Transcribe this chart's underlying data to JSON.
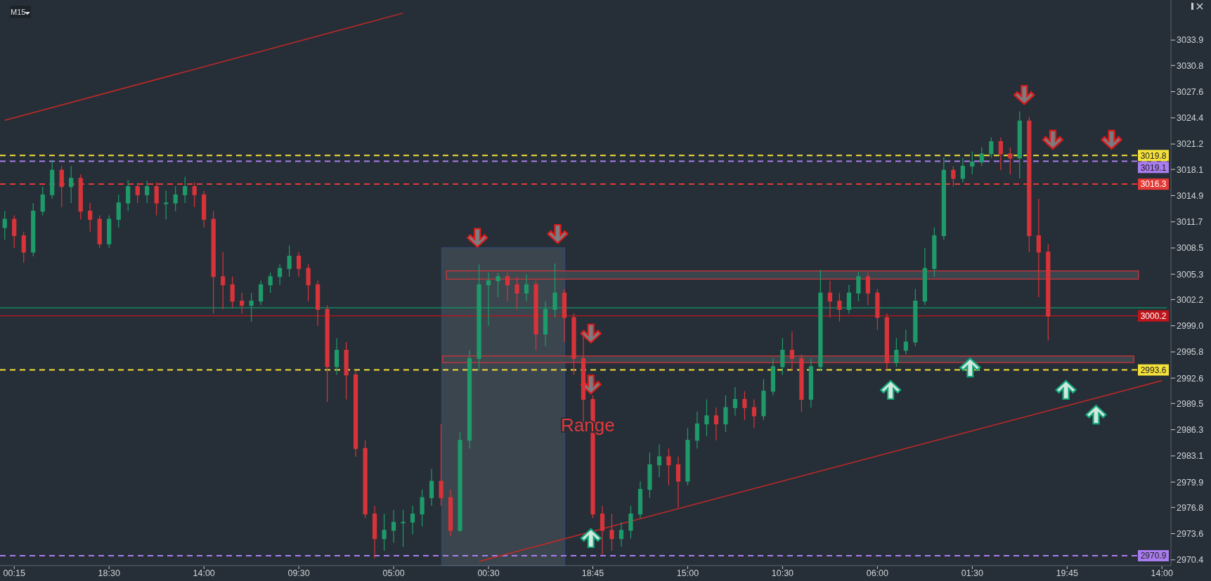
{
  "chart_data": {
    "type": "candlestick",
    "categories": [
      null,
      "00:15",
      null,
      null,
      null,
      null,
      null,
      null,
      null,
      null,
      null,
      "18:30",
      null,
      null,
      null,
      null,
      null,
      null,
      null,
      null,
      null,
      "14:00",
      null,
      null,
      null,
      null,
      null,
      null,
      null,
      null,
      null,
      "09:30",
      null,
      null,
      null,
      null,
      null,
      null,
      null,
      null,
      null,
      "05:00",
      null,
      null,
      null,
      null,
      null,
      null,
      null,
      null,
      null,
      "00:30",
      null,
      null,
      null,
      null,
      null,
      null,
      null,
      null,
      null,
      null,
      "18:45",
      null,
      null,
      null,
      null,
      null,
      null,
      null,
      null,
      null,
      "15:00",
      null,
      null,
      null,
      null,
      null,
      null,
      null,
      null,
      null,
      "10:30",
      null,
      null,
      null,
      null,
      null,
      null,
      null,
      null,
      null,
      "06:00",
      null,
      null,
      null,
      null,
      null,
      null,
      null,
      null,
      null,
      "01:30",
      null,
      null,
      null,
      null,
      null,
      null,
      null,
      null,
      null,
      "19:45",
      null,
      null,
      null,
      null,
      null,
      null,
      null,
      null,
      null,
      "14:00"
    ],
    "ohlc": [
      [
        3011,
        3013,
        3009.5,
        3012
      ],
      [
        3012,
        3012.5,
        3008.5,
        3010
      ],
      [
        3010,
        3010.5,
        3006.7,
        3008
      ],
      [
        3008,
        3014,
        3007.5,
        3013
      ],
      [
        3013,
        3016,
        3012.5,
        3015
      ],
      [
        3015,
        3019.2,
        3014.5,
        3018
      ],
      [
        3018,
        3018.5,
        3013.5,
        3016
      ],
      [
        3016,
        3018.5,
        3014,
        3017
      ],
      [
        3017,
        3017.5,
        3012,
        3013
      ],
      [
        3013,
        3014,
        3010.5,
        3012
      ],
      [
        3012,
        3012.5,
        3008.5,
        3009
      ],
      [
        3009,
        3012.5,
        3008.5,
        3012
      ],
      [
        3012,
        3015,
        3011,
        3014
      ],
      [
        3014,
        3016.8,
        3013,
        3016
      ],
      [
        3016,
        3016.5,
        3014,
        3015
      ],
      [
        3015,
        3016.7,
        3014,
        3016
      ],
      [
        3016,
        3016.5,
        3012.5,
        3014
      ],
      [
        3014,
        3015.5,
        3012,
        3014
      ],
      [
        3014,
        3016,
        3013,
        3015
      ],
      [
        3015,
        3017.2,
        3014,
        3016
      ],
      [
        3016,
        3016.5,
        3013.5,
        3015
      ],
      [
        3015,
        3015.5,
        3011,
        3012
      ],
      [
        3012,
        3013,
        3000.5,
        3005
      ],
      [
        3005,
        3008,
        3001,
        3004
      ],
      [
        3004,
        3005,
        3001.2,
        3002
      ],
      [
        3002,
        3003,
        3000.5,
        3001.5
      ],
      [
        3001.5,
        3003,
        2999.5,
        3002
      ],
      [
        3002,
        3004.5,
        3001.5,
        3004
      ],
      [
        3004,
        3005.5,
        3003,
        3005
      ],
      [
        3005,
        3006.5,
        3004,
        3006
      ],
      [
        3006,
        3008.8,
        3005,
        3007.5
      ],
      [
        3007.5,
        3008,
        3005,
        3006
      ],
      [
        3006,
        3006.5,
        3002,
        3004
      ],
      [
        3004,
        3004.5,
        2999,
        3001
      ],
      [
        3001,
        3001.5,
        2989.7,
        2994
      ],
      [
        2994,
        2997.5,
        2993,
        2996
      ],
      [
        2996,
        2997,
        2990,
        2993
      ],
      [
        2993,
        2993.5,
        2983,
        2984
      ],
      [
        2984,
        2985,
        2975.5,
        2976
      ],
      [
        2976,
        2977,
        2970.6,
        2973
      ],
      [
        2973,
        2976,
        2971.5,
        2974
      ],
      [
        2974,
        2976.5,
        2972.5,
        2975
      ],
      [
        2975,
        2976.5,
        2972,
        2975
      ],
      [
        2975,
        2977,
        2973.5,
        2976
      ],
      [
        2976,
        2979,
        2974.5,
        2978
      ],
      [
        2978,
        2981.5,
        2977,
        2980
      ],
      [
        2980,
        2987,
        2977,
        2978
      ],
      [
        2978,
        2979,
        2973.3,
        2974
      ],
      [
        2974,
        2986,
        2973.8,
        2985
      ],
      [
        2985,
        2996,
        2984,
        2995
      ],
      [
        2995,
        3006.5,
        2993.5,
        3004
      ],
      [
        3004,
        3005.5,
        2999,
        3004.5
      ],
      [
        3004.5,
        3005.5,
        3002.5,
        3005
      ],
      [
        3005,
        3005.5,
        3002,
        3004
      ],
      [
        3004,
        3005,
        3001,
        3003
      ],
      [
        3003,
        3005.3,
        3002,
        3004
      ],
      [
        3004,
        3004.5,
        2996,
        2998
      ],
      [
        2998,
        3002,
        2996.5,
        3001
      ],
      [
        3001,
        3006.6,
        3000,
        3003
      ],
      [
        3003,
        3003.5,
        2997,
        3000
      ],
      [
        3000,
        3000.5,
        2993,
        2995
      ],
      [
        2995,
        2998,
        2987,
        2990
      ],
      [
        2990,
        2990.5,
        2975.5,
        2976
      ],
      [
        2976,
        2977,
        2971,
        2974
      ],
      [
        2974,
        2976,
        2971.5,
        2973
      ],
      [
        2973,
        2975,
        2972,
        2974
      ],
      [
        2974,
        2977,
        2973,
        2976
      ],
      [
        2976,
        2980,
        2975.5,
        2979
      ],
      [
        2979,
        2983.5,
        2978,
        2982
      ],
      [
        2982,
        2984.5,
        2980.5,
        2983
      ],
      [
        2983,
        2984,
        2979.5,
        2982
      ],
      [
        2982,
        2983,
        2976.8,
        2980
      ],
      [
        2980,
        2986.5,
        2979.5,
        2985
      ],
      [
        2985,
        2988.5,
        2984,
        2987
      ],
      [
        2987,
        2990,
        2985.5,
        2988
      ],
      [
        2988,
        2989,
        2985,
        2987
      ],
      [
        2987,
        2990.5,
        2986,
        2989
      ],
      [
        2989,
        2991.5,
        2988,
        2990
      ],
      [
        2990,
        2991,
        2987.5,
        2989
      ],
      [
        2989,
        2990,
        2986.5,
        2988
      ],
      [
        2988,
        2992.5,
        2987.5,
        2991
      ],
      [
        2991,
        2995,
        2990.5,
        2994
      ],
      [
        2994,
        2997.5,
        2993,
        2996
      ],
      [
        2996,
        2998.3,
        2993.5,
        2995
      ],
      [
        2995,
        2995.5,
        2988.5,
        2990
      ],
      [
        2990,
        2995,
        2989,
        2994
      ],
      [
        2994,
        3005.8,
        2993.5,
        3003
      ],
      [
        3003,
        3004.5,
        3000,
        3002
      ],
      [
        3002,
        3003,
        2999.5,
        3001
      ],
      [
        3001,
        3004,
        3000.5,
        3003
      ],
      [
        3003,
        3005.6,
        3002,
        3005
      ],
      [
        3005,
        3005.5,
        3001.5,
        3003
      ],
      [
        3003,
        3003.5,
        2998.5,
        3000
      ],
      [
        3000,
        3000.5,
        2993.6,
        2994.5
      ],
      [
        2994.5,
        2997.5,
        2994,
        2996
      ],
      [
        2996,
        2998.5,
        2995.5,
        2997
      ],
      [
        2997,
        3003.5,
        2996.5,
        3002
      ],
      [
        3002,
        3008.5,
        3001.5,
        3006
      ],
      [
        3006,
        3011,
        3005,
        3010
      ],
      [
        3010,
        3019.6,
        3009.5,
        3018
      ],
      [
        3018,
        3018.5,
        3016,
        3017
      ],
      [
        3017,
        3019.5,
        3016.5,
        3018.5
      ],
      [
        3018.5,
        3020.3,
        3017.5,
        3019
      ],
      [
        3019,
        3020.8,
        3018.5,
        3020
      ],
      [
        3020,
        3022,
        3019.5,
        3021.5
      ],
      [
        3021.5,
        3022,
        3018,
        3020
      ],
      [
        3020,
        3020.8,
        3017.5,
        3019.5
      ],
      [
        3019.5,
        3025.2,
        3017,
        3024
      ],
      [
        3024,
        3024.5,
        3008,
        3010
      ],
      [
        3010,
        3014.5,
        3002.5,
        3008
      ],
      [
        3008,
        3009,
        2997.2,
        3000.2
      ],
      null,
      null,
      null,
      null,
      null,
      null,
      null,
      null,
      null,
      null,
      null,
      null
    ],
    "colors": [
      "#1f9b6b",
      "#d9343a",
      "#d9343a",
      "#1f9b6b",
      "#1f9b6b",
      "#1f9b6b",
      "#d9343a",
      "#1f9b6b",
      "#d9343a",
      "#d9343a",
      "#d9343a",
      "#1f9b6b",
      "#1f9b6b",
      "#1f9b6b",
      "#d9343a",
      "#1f9b6b",
      "#d9343a",
      "#1f9b6b",
      "#1f9b6b",
      "#1f9b6b",
      "#d9343a",
      "#d9343a",
      "#d9343a",
      "#d9343a",
      "#d9343a",
      "#d9343a",
      "#1f9b6b",
      "#1f9b6b",
      "#1f9b6b",
      "#1f9b6b",
      "#1f9b6b",
      "#d9343a",
      "#d9343a",
      "#d9343a",
      "#d9343a",
      "#1f9b6b",
      "#d9343a",
      "#d9343a",
      "#d9343a",
      "#d9343a",
      "#1f9b6b",
      "#1f9b6b",
      "#1f9b6b",
      "#1f9b6b",
      "#1f9b6b",
      "#1f9b6b",
      "#d9343a",
      "#d9343a",
      "#1f9b6b",
      "#1f9b6b",
      "#1f9b6b",
      "#1f9b6b",
      "#1f9b6b",
      "#d9343a",
      "#d9343a",
      "#1f9b6b",
      "#d9343a",
      "#1f9b6b",
      "#1f9b6b",
      "#d9343a",
      "#d9343a",
      "#d9343a",
      "#d9343a",
      "#d9343a",
      "#d9343a",
      "#1f9b6b",
      "#1f9b6b",
      "#1f9b6b",
      "#1f9b6b",
      "#1f9b6b",
      "#d9343a",
      "#d9343a",
      "#1f9b6b",
      "#1f9b6b",
      "#1f9b6b",
      "#d9343a",
      "#1f9b6b",
      "#1f9b6b",
      "#d9343a",
      "#d9343a",
      "#1f9b6b",
      "#1f9b6b",
      "#1f9b6b",
      "#d9343a",
      "#d9343a",
      "#1f9b6b",
      "#1f9b6b",
      "#d9343a",
      "#d9343a",
      "#1f9b6b",
      "#1f9b6b",
      "#d9343a",
      "#d9343a",
      "#d9343a",
      "#1f9b6b",
      "#1f9b6b",
      "#1f9b6b",
      "#1f9b6b",
      "#1f9b6b",
      "#1f9b6b",
      "#d9343a",
      "#1f9b6b",
      "#1f9b6b",
      "#1f9b6b",
      "#1f9b6b",
      "#d9343a",
      "#d9343a",
      "#1f9b6b",
      "#d9343a",
      "#d9343a",
      "#d9343a",
      null,
      null,
      null,
      null,
      null,
      null,
      null,
      null,
      null,
      null,
      null,
      null
    ],
    "series": [
      {
        "type": "line",
        "values": [
          null,
          null,
          null,
          null,
          null,
          null,
          null,
          null,
          null,
          null,
          null,
          null,
          null,
          null,
          null,
          null,
          null,
          null,
          null,
          null,
          null,
          null,
          null,
          null,
          null,
          null,
          null,
          null,
          null,
          null,
          null,
          null,
          null,
          null,
          null,
          null,
          null,
          null,
          null,
          null,
          null,
          null,
          null,
          null,
          null,
          null,
          null,
          null,
          null,
          null,
          2970.2,
          null,
          null,
          null,
          null,
          null,
          null,
          null,
          null,
          null,
          null,
          null,
          null,
          null,
          null,
          null,
          null,
          null,
          null,
          null,
          null,
          null,
          null,
          null,
          null,
          null,
          null,
          null,
          null,
          null,
          null,
          null,
          null,
          null,
          null,
          null,
          null,
          null,
          null,
          null,
          null,
          null,
          null,
          null,
          null,
          null,
          null,
          null,
          null,
          null,
          null,
          null,
          null,
          null,
          null,
          null,
          null,
          null,
          null,
          null,
          null,
          null,
          null,
          null,
          null,
          null,
          null,
          null,
          null,
          null,
          null,
          null,
          2992.3
        ],
        "color": "#c62828"
      },
      {
        "type": "line",
        "values": [
          3024.1,
          null,
          null,
          null,
          null,
          null,
          null,
          null,
          null,
          null,
          null,
          null,
          null,
          null,
          null,
          null,
          null,
          null,
          null,
          null,
          null,
          null,
          null,
          null,
          null,
          null,
          null,
          null,
          null,
          null,
          null,
          null,
          null,
          null,
          null,
          null,
          null,
          null,
          null,
          null,
          null,
          null,
          3037.2,
          null,
          null,
          null,
          null,
          null,
          null,
          null,
          null,
          null,
          null,
          null,
          null,
          null,
          null,
          null,
          null,
          null,
          null,
          null,
          null,
          null,
          null,
          null,
          null,
          null,
          null,
          null,
          null,
          null,
          null,
          null,
          null,
          null,
          null,
          null,
          null,
          null,
          null,
          null,
          null,
          null,
          null,
          null,
          null,
          null,
          null,
          null,
          null,
          null,
          null,
          null,
          null,
          null,
          null,
          null,
          null,
          null,
          null,
          null,
          null,
          null,
          null,
          null,
          null,
          null,
          null,
          null,
          null,
          null,
          null,
          null,
          null,
          null,
          null,
          null,
          null,
          null,
          null,
          null,
          null
        ],
        "color": "#c62828"
      }
    ],
    "ylim": [
      2969.7,
      3038.8
    ],
    "yticks": [
      2970.4,
      2973.6,
      2976.8,
      2979.9,
      2983.1,
      2986.3,
      2989.5,
      2992.6,
      2995.8,
      {
        "value": 2999,
        "label": "2999.0"
      },
      3002.2,
      3005.3,
      3008.5,
      3011.7,
      3014.9,
      3018.1,
      3021.2,
      3024.4,
      3027.6,
      3030.8,
      3033.9
    ],
    "ref_lines": [
      {
        "axis": "y",
        "value": 3019.8,
        "label": "3019.8",
        "color": "#f5e13a",
        "line_style": "dashed"
      },
      {
        "axis": "y",
        "value": 3019.1,
        "label": "3019.1",
        "color": "#a97cf0",
        "line_style": "dashed"
      },
      {
        "axis": "y",
        "value": 3016.3,
        "label": "3016.3",
        "color": "#e53935",
        "line_style": "dashed"
      },
      {
        "axis": "y",
        "value": 3001.2,
        "label": null,
        "color": "#12956a",
        "line_style": "solid"
      },
      {
        "axis": "y",
        "value": 3000.2,
        "label": "3000.2",
        "color": "#c0141a",
        "line_style": "solid"
      },
      {
        "axis": "y",
        "value": 2993.6,
        "label": "2993.6",
        "color": "#f5e13a",
        "line_style": "dashed"
      },
      {
        "axis": "y",
        "value": 2970.9,
        "label": "2970.9",
        "color": "#a97cf0",
        "line_style": "dashed"
      }
    ],
    "bands": [
      {
        "axis": "y",
        "from": 3004.7,
        "to": 3005.7,
        "color": "#d9343a"
      },
      {
        "axis": "y",
        "from": 2994.5,
        "to": 2995.3,
        "color": "#d9343a"
      }
    ],
    "annotations": [
      "M15",
      "Range"
    ],
    "grid": false
  }
}
